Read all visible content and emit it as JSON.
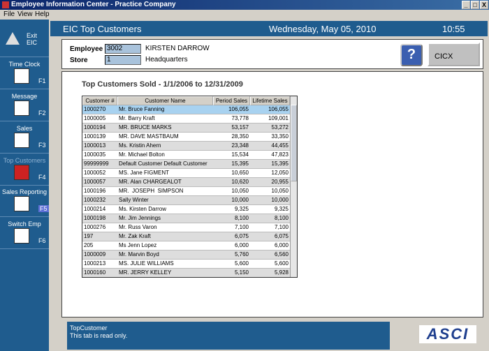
{
  "window": {
    "title": "Employee Information Center - Practice Company",
    "controls": [
      "_",
      "□",
      "X"
    ]
  },
  "menu": [
    "File",
    "View",
    "Help"
  ],
  "sidebar": [
    {
      "label": "Exit EIC",
      "key": null
    },
    {
      "label": "Time Clock",
      "key": "F1"
    },
    {
      "label": "Message",
      "key": "F2"
    },
    {
      "label": "Sales",
      "key": "F3"
    },
    {
      "label": "Top Customers",
      "key": "F4"
    },
    {
      "label": "Sales Reporting",
      "key": "F5"
    },
    {
      "label": "Switch Emp",
      "key": "F6"
    }
  ],
  "header": {
    "title": "EIC Top Customers",
    "date": "Wednesday, May 05, 2010",
    "time": "10:55"
  },
  "employee": {
    "label": "Employee",
    "id": "3002",
    "name": "KIRSTEN DARROW",
    "store_label": "Store",
    "store_id": "1",
    "store_name": "Headquarters"
  },
  "buttons": {
    "help": "?",
    "cicx": "CICX"
  },
  "report": {
    "title": "Top Customers Sold - 1/1/2006 to 12/31/2009",
    "columns": [
      "Customer #",
      "Customer Name",
      "Period Sales",
      "Lifetime Sales"
    ],
    "rows": [
      [
        "1000270",
        "Mr. Bruce Fanning",
        "106,055",
        "106,055"
      ],
      [
        "1000005",
        "Mr. Barry Kraft",
        "73,778",
        "109,001"
      ],
      [
        "1000194",
        "MR. BRUCE MARKS",
        "53,157",
        "53,272"
      ],
      [
        "1000139",
        "MR. DAVE MASTBAUM",
        "28,350",
        "33,350"
      ],
      [
        "1000013",
        "Ms. Kristin Ahern",
        "23,348",
        "44,455"
      ],
      [
        "1000035",
        "Mr. Michael Bolton",
        "15,534",
        "47,823"
      ],
      [
        "99999999",
        "Default Customer Default Customer",
        "15,395",
        "15,395"
      ],
      [
        "1000052",
        "MS. Jane FIGMENT",
        "10,650",
        "12,050"
      ],
      [
        "1000057",
        "MR. Alan CHARGEALOT",
        "10,620",
        "20,955"
      ],
      [
        "1000196",
        "MR.  JOSEPH  SIMPSON",
        "10,050",
        "10,050"
      ],
      [
        "1000232",
        "Sally Winter",
        "10,000",
        "10,000"
      ],
      [
        "1000214",
        "Ms. Kirsten Darrow",
        "9,325",
        "9,325"
      ],
      [
        "1000198",
        "Mr. Jim Jennings",
        "8,100",
        "8,100"
      ],
      [
        "1000276",
        "Mr. Russ Varon",
        "7,100",
        "7,100"
      ],
      [
        "197",
        "Mr. Zak Kraft",
        "6,075",
        "6,075"
      ],
      [
        "205",
        "Ms Jenn Lopez",
        "6,000",
        "6,000"
      ],
      [
        "1000009",
        "Mr. Marvin Boyd",
        "5,760",
        "6,560"
      ],
      [
        "1000213",
        "MS. JULIE WILLIAMS",
        "5,600",
        "5,600"
      ],
      [
        "1000160",
        "MR. JERRY KELLEY",
        "5,150",
        "5,928"
      ]
    ]
  },
  "status": {
    "name": "TopCustomer",
    "message": "This tab is read only.",
    "logo": "ASCI"
  }
}
